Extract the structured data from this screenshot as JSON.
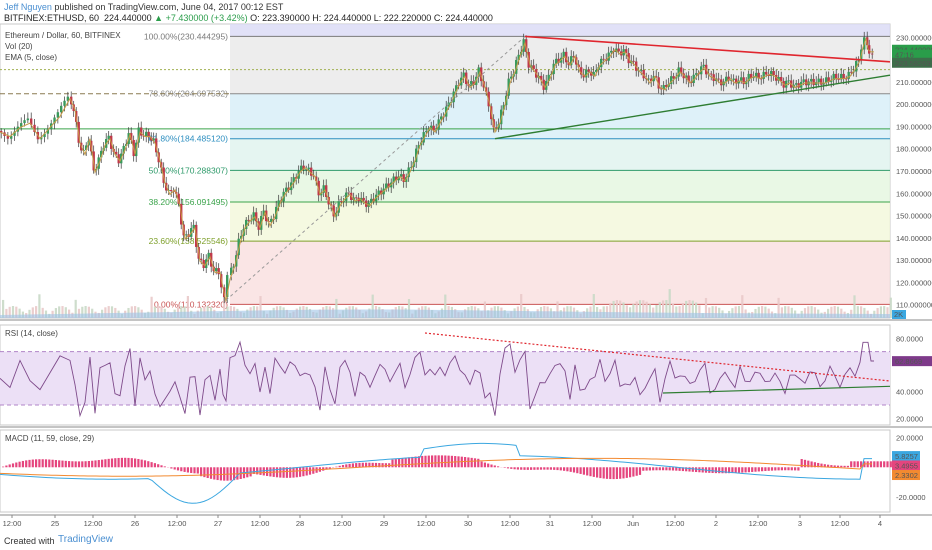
{
  "header": {
    "author": "Jeff Nguyen",
    "published_text": "published on TradingView.com, June 04, 2017 00:12 EST",
    "symbol": "BITFINEX:ETHUSD, 60",
    "last": "224.440000",
    "change": "+7.430000 (+3.42%)",
    "ohlc": "O: 223.390000  H: 224.440000  L: 222.220000  C: 224.440000"
  },
  "footer": {
    "created_with": "Created with",
    "brand": "TradingView"
  },
  "colors": {
    "up": "#3a9a5c",
    "down": "#c0394b",
    "ema": "#c49a45",
    "rsi": "#7e4a8a",
    "macd": "#3ba7e0",
    "signal": "#f28a30",
    "hist": "#e5457e",
    "trend_red": "#e0262e",
    "trend_green": "#2e7d32"
  },
  "chart_data": [
    {
      "type": "candlestick",
      "pane": "price",
      "title": "Ethereum / Dollar, 60, BITFINEX",
      "indicators": [
        "Vol (20)",
        "EMA (5, close)"
      ],
      "ylim": [
        104,
        236
      ],
      "y_ticks": [
        "230.000000",
        "220.000000",
        "210.000000",
        "200.000000",
        "190.000000",
        "180.000000",
        "170.000000",
        "160.000000",
        "150.000000",
        "140.000000",
        "130.000000",
        "120.000000",
        "110.000000"
      ],
      "x_ticks": [
        "12:00",
        "25",
        "12:00",
        "26",
        "12:00",
        "27",
        "12:00",
        "28",
        "12:00",
        "29",
        "12:00",
        "30",
        "12:00",
        "31",
        "12:00",
        "Jun",
        "12:00",
        "2",
        "12:00",
        "3",
        "12:00",
        "4"
      ],
      "price_labels": {
        "last": "224.440000",
        "ema": "223.582691",
        "countdown": "47:16"
      },
      "volume_label": "2K",
      "fibonacci": [
        {
          "ratio": "100.00%",
          "label": "100.00%(230.444295)",
          "price": 230.444
        },
        {
          "ratio": "78.60%",
          "label": "78.60%(204.697532)",
          "price": 204.698
        },
        {
          "ratio": "61.80%",
          "label": "61.80%(184.485120)",
          "price": 184.485
        },
        {
          "ratio": "50.00%",
          "label": "50.00%(170.288307)",
          "price": 170.288
        },
        {
          "ratio": "38.20%",
          "label": "38.20%(156.091495)",
          "price": 156.091
        },
        {
          "ratio": "23.60%",
          "label": "23.60%(138.525546)",
          "price": 138.526
        },
        {
          "ratio": "0.00%",
          "label": "0.00%(110.132320)",
          "price": 110.132
        }
      ],
      "series": [
        {
          "name": "close",
          "points": [
            [
              0,
              188
            ],
            [
              10,
              186
            ],
            [
              20,
              190
            ],
            [
              30,
              192
            ],
            [
              40,
              185
            ],
            [
              50,
              190
            ],
            [
              60,
              195
            ],
            [
              70,
              203
            ],
            [
              75,
              198
            ],
            [
              80,
              183
            ],
            [
              85,
              178
            ],
            [
              90,
              185
            ],
            [
              95,
              170
            ],
            [
              100,
              175
            ],
            [
              105,
              182
            ],
            [
              110,
              185
            ],
            [
              115,
              178
            ],
            [
              120,
              175
            ],
            [
              125,
              180
            ],
            [
              130,
              187
            ],
            [
              135,
              178
            ],
            [
              140,
              188
            ],
            [
              145,
              186
            ],
            [
              150,
              186
            ],
            [
              155,
              183
            ],
            [
              160,
              175
            ],
            [
              165,
              165
            ],
            [
              170,
              160
            ],
            [
              175,
              162
            ],
            [
              180,
              155
            ],
            [
              185,
              140
            ],
            [
              190,
              142
            ],
            [
              195,
              145
            ],
            [
              200,
              130
            ],
            [
              205,
              128
            ],
            [
              210,
              132
            ],
            [
              215,
              125
            ],
            [
              220,
              125
            ],
            [
              223,
              118
            ],
            [
              226,
              112
            ],
            [
              230,
              122
            ],
            [
              235,
              128
            ],
            [
              240,
              138
            ],
            [
              245,
              145
            ],
            [
              250,
              148
            ],
            [
              255,
              150
            ],
            [
              260,
              145
            ],
            [
              265,
              152
            ],
            [
              270,
              146
            ],
            [
              275,
              150
            ],
            [
              280,
              156
            ],
            [
              285,
              160
            ],
            [
              290,
              163
            ],
            [
              295,
              166
            ],
            [
              300,
              170
            ],
            [
              305,
              172
            ],
            [
              310,
              170
            ],
            [
              315,
              168
            ],
            [
              320,
              160
            ],
            [
              325,
              162
            ],
            [
              330,
              156
            ],
            [
              335,
              150
            ],
            [
              340,
              155
            ],
            [
              345,
              158
            ],
            [
              350,
              160
            ],
            [
              355,
              157
            ],
            [
              360,
              158
            ],
            [
              365,
              156
            ],
            [
              370,
              155
            ],
            [
              375,
              158
            ],
            [
              380,
              160
            ],
            [
              385,
              162
            ],
            [
              390,
              164
            ],
            [
              395,
              166
            ],
            [
              400,
              168
            ],
            [
              405,
              166
            ],
            [
              410,
              170
            ],
            [
              415,
              175
            ],
            [
              420,
              182
            ],
            [
              425,
              186
            ],
            [
              430,
              190
            ],
            [
              435,
              188
            ],
            [
              440,
              192
            ],
            [
              445,
              196
            ],
            [
              450,
              200
            ],
            [
              455,
              205
            ],
            [
              460,
              210
            ],
            [
              465,
              213
            ],
            [
              470,
              208
            ],
            [
              475,
              210
            ],
            [
              480,
              215
            ],
            [
              485,
              208
            ],
            [
              490,
              200
            ],
            [
              495,
              188
            ],
            [
              500,
              192
            ],
            [
              505,
              200
            ],
            [
              510,
              210
            ],
            [
              515,
              215
            ],
            [
              520,
              222
            ],
            [
              525,
              228
            ],
            [
              530,
              218
            ],
            [
              535,
              215
            ],
            [
              540,
              212
            ],
            [
              545,
              208
            ],
            [
              550,
              212
            ],
            [
              555,
              218
            ],
            [
              560,
              220
            ],
            [
              565,
              222
            ],
            [
              570,
              218
            ],
            [
              575,
              222
            ],
            [
              580,
              215
            ],
            [
              585,
              213
            ],
            [
              590,
              215
            ],
            [
              595,
              213
            ],
            [
              600,
              218
            ],
            [
              605,
              220
            ],
            [
              610,
              222
            ],
            [
              615,
              225
            ],
            [
              620,
              223
            ],
            [
              625,
              224
            ],
            [
              630,
              220
            ],
            [
              635,
              218
            ],
            [
              640,
              215
            ],
            [
              645,
              213
            ],
            [
              650,
              210
            ],
            [
              655,
              213
            ],
            [
              660,
              208
            ],
            [
              665,
              207
            ],
            [
              670,
              210
            ],
            [
              675,
              212
            ],
            [
              680,
              215
            ],
            [
              685,
              213
            ],
            [
              690,
              210
            ],
            [
              695,
              212
            ],
            [
              700,
              215
            ],
            [
              705,
              217
            ],
            [
              710,
              213
            ],
            [
              715,
              212
            ],
            [
              720,
              210
            ],
            [
              725,
              210
            ],
            [
              730,
              212
            ],
            [
              735,
              210
            ],
            [
              740,
              211
            ],
            [
              745,
              210
            ],
            [
              750,
              212
            ],
            [
              755,
              213
            ],
            [
              760,
              212
            ],
            [
              765,
              213
            ],
            [
              770,
              214
            ],
            [
              775,
              213
            ],
            [
              780,
              211
            ],
            [
              785,
              209
            ],
            [
              790,
              210
            ],
            [
              795,
              208
            ],
            [
              800,
              209
            ],
            [
              805,
              210
            ],
            [
              810,
              210
            ],
            [
              815,
              210
            ],
            [
              820,
              210
            ],
            [
              825,
              210
            ],
            [
              830,
              211
            ],
            [
              835,
              212
            ],
            [
              840,
              212
            ],
            [
              845,
              212
            ],
            [
              850,
              213
            ],
            [
              855,
              216
            ],
            [
              860,
              220
            ],
            [
              863,
              226
            ],
            [
              866,
              230
            ],
            [
              868,
              225
            ],
            [
              871,
              224
            ],
            [
              874,
              224
            ]
          ]
        }
      ]
    },
    {
      "type": "line",
      "pane": "rsi",
      "title": "RSI (14, close)",
      "ylim": [
        15,
        90
      ],
      "y_ticks": [
        "80.0000",
        "40.0000",
        "20.0000"
      ],
      "bands": [
        70,
        30
      ],
      "last_label": "62.8669"
    },
    {
      "type": "line",
      "pane": "macd",
      "title": "MACD (11, 59, close, 29)",
      "ylim": [
        -30,
        25
      ],
      "y_ticks": [
        "20.0000",
        "-20.0000"
      ],
      "labels": {
        "macd": "5.8257",
        "hist": "3.4955",
        "signal": "2.3302"
      }
    }
  ]
}
